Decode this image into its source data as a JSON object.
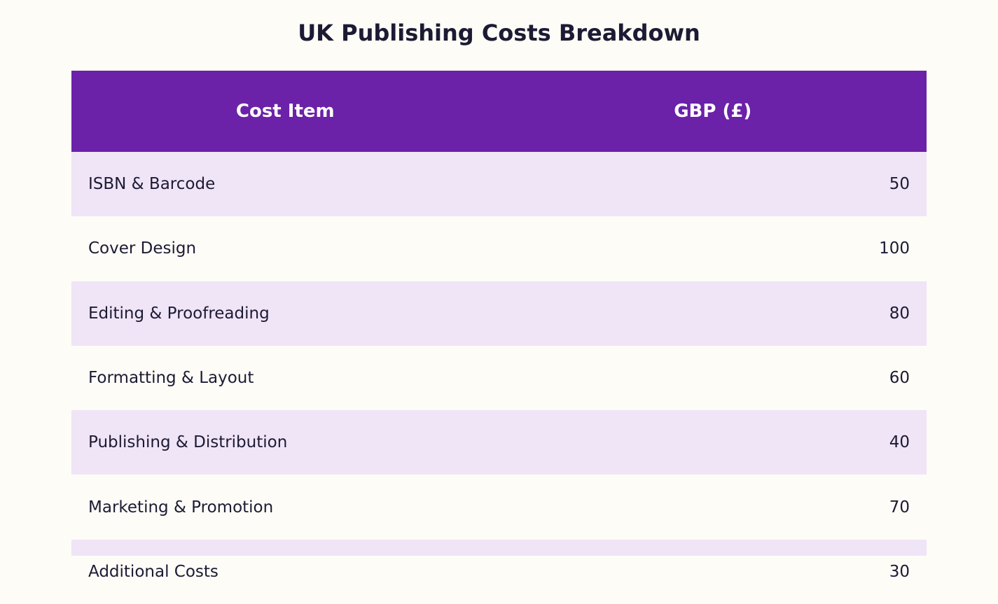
{
  "title": "UK Publishing Costs Breakdown",
  "table": {
    "header": [
      "Cost Item",
      "GBP (£)"
    ],
    "rows": [
      [
        "ISBN & Barcode",
        50
      ],
      [
        "Cover Design",
        100
      ],
      [
        "Editing & Proofreading",
        80
      ],
      [
        "Formatting & Layout",
        60
      ],
      [
        "Publishing & Distribution",
        40
      ],
      [
        "Marketing & Promotion",
        70
      ],
      [
        "Additional Costs",
        30
      ]
    ]
  }
}
